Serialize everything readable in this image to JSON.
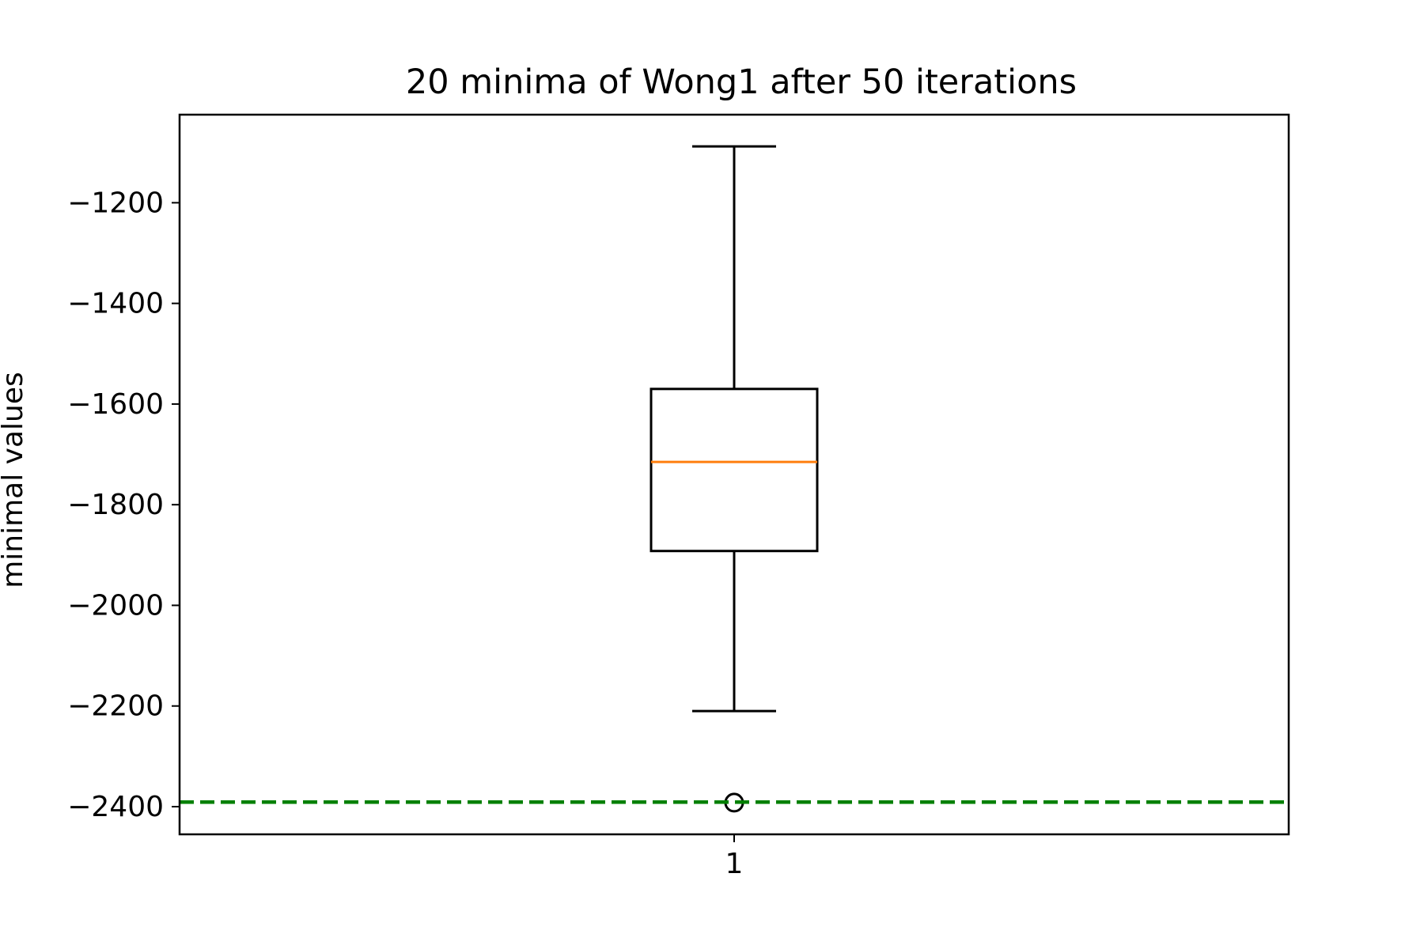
{
  "chart_data": {
    "type": "box",
    "title": "20 minima of Wong1 after 50 iterations",
    "xlabel": "",
    "ylabel": "minimal values",
    "categories": [
      "1"
    ],
    "ylim": [
      -2455,
      -1025
    ],
    "yticks": [
      -1200,
      -1400,
      -1600,
      -1800,
      -2000,
      -2200,
      -2400
    ],
    "ytick_labels": [
      "−1200",
      "−1400",
      "−1600",
      "−1800",
      "−2000",
      "−2200",
      "−2400"
    ],
    "boxes": [
      {
        "category": "1",
        "whisker_high": -1088,
        "q3": -1570,
        "median": -1715,
        "q1": -1892,
        "whisker_low": -2210,
        "outliers": [
          -2392
        ]
      }
    ],
    "reference_line": {
      "value": -2391,
      "style": "dashed",
      "color": "#008000"
    },
    "colors": {
      "box": "#000000",
      "median": "#ff7f0e",
      "reference_line": "#008000"
    },
    "grid": false,
    "legend": "none"
  }
}
